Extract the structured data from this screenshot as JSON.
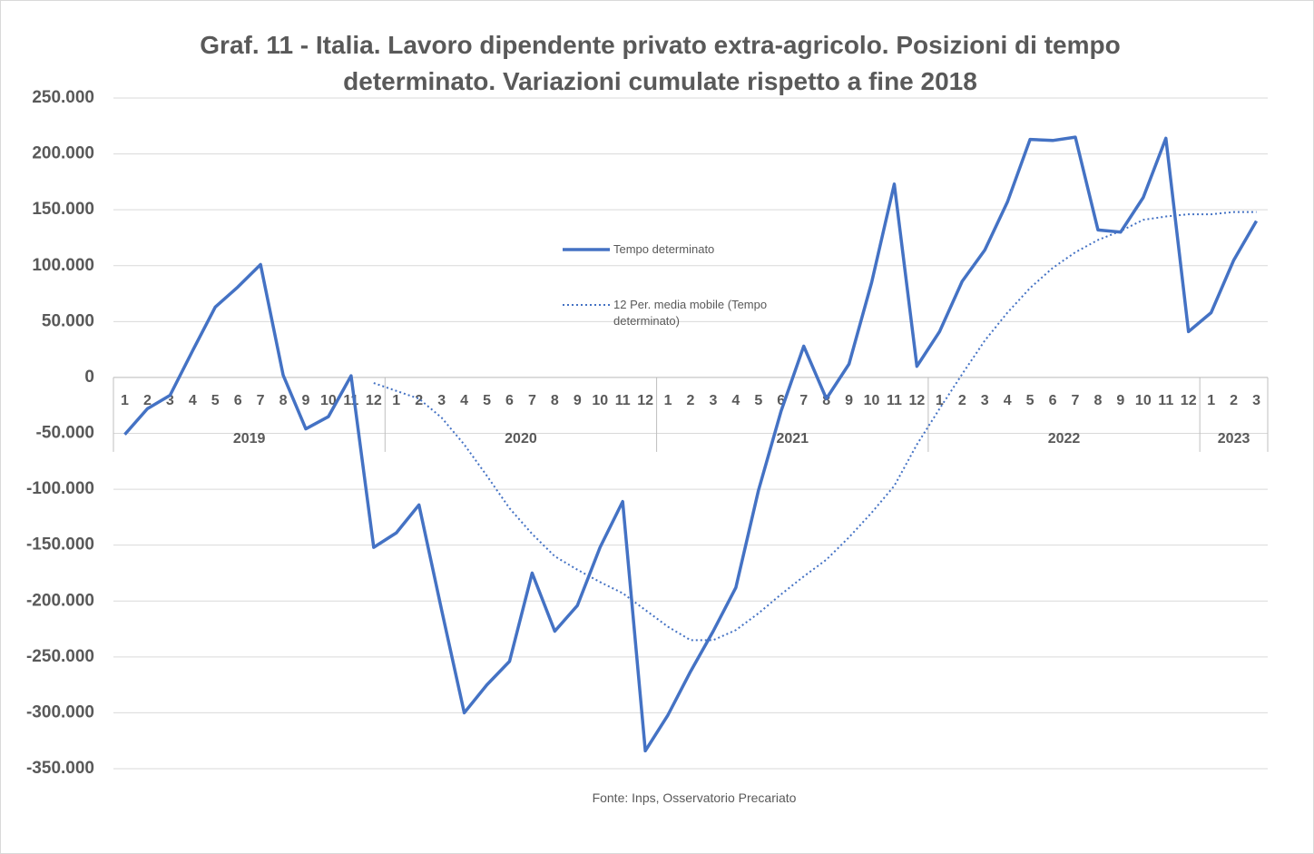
{
  "chart_data": {
    "type": "line",
    "title": "Graf. 11 - Italia. Lavoro dipendente privato extra-agricolo. Posizioni di tempo determinato. Variazioni cumulate rispetto a fine 2018",
    "source": "Fonte: Inps, Osservatorio Precariato",
    "categories": [
      "1",
      "2",
      "3",
      "4",
      "5",
      "6",
      "7",
      "8",
      "9",
      "10",
      "11",
      "12",
      "1",
      "2",
      "3",
      "4",
      "5",
      "6",
      "7",
      "8",
      "9",
      "10",
      "11",
      "12",
      "1",
      "2",
      "3",
      "4",
      "5",
      "6",
      "7",
      "8",
      "9",
      "10",
      "11",
      "12",
      "1",
      "2",
      "3",
      "4",
      "5",
      "6",
      "7",
      "8",
      "9",
      "10",
      "11",
      "12",
      "1",
      "2",
      "3"
    ],
    "groups": [
      "2019",
      "2020",
      "2021",
      "2022",
      "2023"
    ],
    "series": [
      {
        "name": "Tempo determinato",
        "color": "#4472c4",
        "style": "solid",
        "values": [
          -51000,
          -28000,
          -16000,
          24000,
          63000,
          81000,
          101000,
          2000,
          -46000,
          -35000,
          1500,
          -152000,
          -139000,
          -114000,
          -208000,
          -300000,
          -275000,
          -254000,
          -175000,
          -227000,
          -204000,
          -152000,
          -111000,
          -334000,
          -302000,
          -263000,
          -227000,
          -188000,
          -101000,
          -30000,
          28000,
          -19000,
          12000,
          85000,
          173000,
          10000,
          41000,
          86000,
          114000,
          157000,
          213000,
          212000,
          215000,
          132000,
          130000,
          161000,
          214000,
          41000,
          58000,
          105000,
          140000
        ]
      },
      {
        "name": "12 Per. media mobile (Tempo determinato)",
        "color": "#4472c4",
        "style": "dotted",
        "values": [
          null,
          null,
          null,
          null,
          null,
          null,
          null,
          null,
          null,
          null,
          null,
          -5000,
          -12000,
          -19000,
          -36000,
          -60000,
          -88000,
          -117000,
          -140000,
          -160000,
          -172000,
          -183000,
          -193000,
          -208000,
          -223000,
          -235000,
          -235000,
          -226000,
          -211000,
          -194000,
          -178000,
          -163000,
          -143000,
          -121000,
          -97000,
          -60000,
          -28000,
          3000,
          33000,
          58000,
          80000,
          98000,
          112000,
          123000,
          131000,
          141000,
          144000,
          146000,
          146000,
          148000,
          148000
        ]
      }
    ],
    "ylim": [
      -350000,
      250000
    ],
    "yticks": [
      {
        "value": -350000,
        "label": "-350.000"
      },
      {
        "value": -300000,
        "label": "-300.000"
      },
      {
        "value": -250000,
        "label": "-250.000"
      },
      {
        "value": -200000,
        "label": "-200.000"
      },
      {
        "value": -150000,
        "label": "-150.000"
      },
      {
        "value": -100000,
        "label": "-100.000"
      },
      {
        "value": -50000,
        "label": "-50.000"
      },
      0,
      {
        "value": 50000,
        "label": "50.000"
      },
      {
        "value": 100000,
        "label": "100.000"
      },
      {
        "value": 150000,
        "label": "150.000"
      },
      {
        "value": 200000,
        "label": "200.000"
      },
      {
        "value": 250000,
        "label": "250.000"
      }
    ],
    "grid": true
  }
}
